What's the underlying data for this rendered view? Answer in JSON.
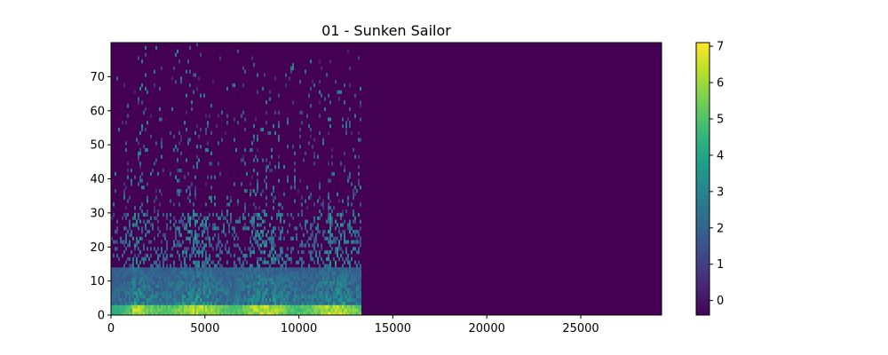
{
  "chart_data": {
    "type": "heatmap",
    "title": "01 - Sunken Sailor",
    "xlabel": "",
    "ylabel": "",
    "xlim": [
      0,
      29300
    ],
    "ylim": [
      0,
      80
    ],
    "x_ticks": [
      0,
      5000,
      10000,
      15000,
      20000,
      25000
    ],
    "x_tick_labels": [
      "0",
      "5000",
      "10000",
      "15000",
      "20000",
      "25000"
    ],
    "y_ticks": [
      0,
      10,
      20,
      30,
      40,
      50,
      60,
      70
    ],
    "y_tick_labels": [
      "0",
      "10",
      "20",
      "30",
      "40",
      "50",
      "60",
      "70"
    ],
    "colorbar": {
      "range": [
        -0.4,
        7.1
      ],
      "ticks": [
        0,
        1,
        2,
        3,
        4,
        5,
        6,
        7
      ],
      "tick_labels": [
        "0",
        "1",
        "2",
        "3",
        "4",
        "5",
        "6",
        "7"
      ],
      "colormap": "viridis"
    },
    "background_value": -0.4,
    "signal_x_range": [
      0,
      13300
    ],
    "n_frequency_bins": 80
  },
  "colors": {
    "viridis": [
      "#440154",
      "#482878",
      "#3e4a89",
      "#31688e",
      "#26828e",
      "#1f9e89",
      "#35b779",
      "#6ece58",
      "#b5de2b",
      "#fde725"
    ]
  }
}
